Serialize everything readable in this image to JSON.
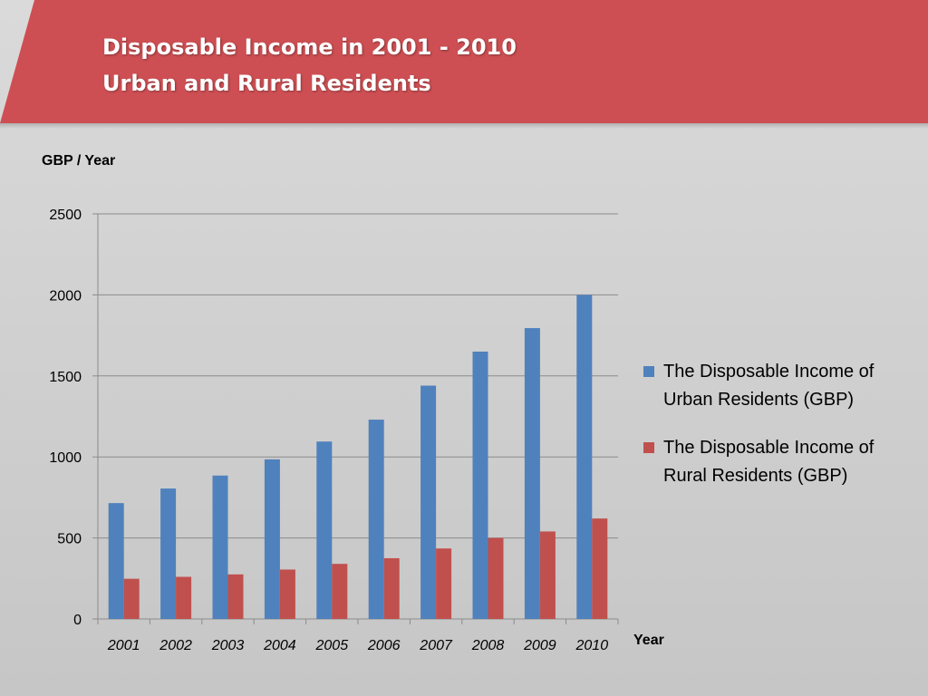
{
  "slide": {
    "title_line1": "Disposable Income in 2001 - 2010",
    "title_line2": "Urban and Rural Residents"
  },
  "colors": {
    "banner": "#cd4f53",
    "urban": "#4f81bd",
    "rural": "#c0504d"
  },
  "chart_data": {
    "type": "bar",
    "ylabel": "GBP / Year",
    "xlabel": "Year",
    "categories": [
      "2001",
      "2002",
      "2003",
      "2004",
      "2005",
      "2006",
      "2007",
      "2008",
      "2009",
      "2010"
    ],
    "ylim": [
      0,
      2500
    ],
    "yticks": [
      0,
      500,
      1000,
      1500,
      2000,
      2500
    ],
    "grid": true,
    "legend_position": "right",
    "series": [
      {
        "name": "The Disposable Income of Urban Residents (GBP)",
        "legend_line1": "The Disposable Income of",
        "legend_line2": "Urban Residents (GBP)",
        "values": [
          715,
          805,
          885,
          985,
          1095,
          1230,
          1440,
          1650,
          1795,
          2000
        ]
      },
      {
        "name": "The Disposable Income of Rural Residents (GBP)",
        "legend_line1": "The Disposable Income of",
        "legend_line2": "Rural Residents (GBP)",
        "values": [
          248,
          260,
          275,
          305,
          340,
          375,
          435,
          500,
          540,
          620
        ]
      }
    ]
  }
}
